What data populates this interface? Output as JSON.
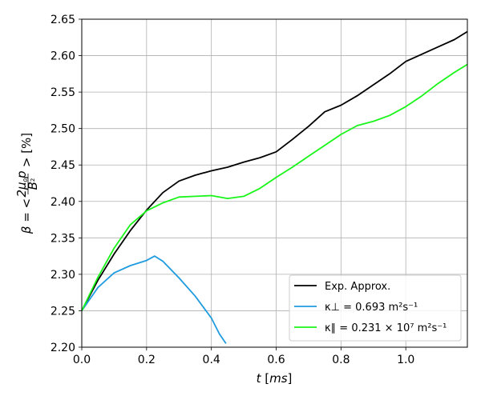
{
  "chart_data": {
    "type": "line",
    "xlabel": "t [ms]",
    "ylabel": "β = < 2μ0p / B² > [%]",
    "xlim": [
      0.0,
      1.19
    ],
    "ylim": [
      2.2,
      2.65
    ],
    "xticks": [
      0.0,
      0.2,
      0.4,
      0.6,
      0.8,
      1.0
    ],
    "xtick_labels": [
      "0.0",
      "0.2",
      "0.4",
      "0.6",
      "0.8",
      "1.0"
    ],
    "yticks": [
      2.2,
      2.25,
      2.3,
      2.35,
      2.4,
      2.45,
      2.5,
      2.55,
      2.6,
      2.65
    ],
    "ytick_labels": [
      "2.20",
      "2.25",
      "2.30",
      "2.35",
      "2.40",
      "2.45",
      "2.50",
      "2.55",
      "2.60",
      "2.65"
    ],
    "grid": true,
    "legend_position": "lower-right",
    "series": [
      {
        "name": "Exp. Approx.",
        "color": "#000000",
        "x": [
          0.0,
          0.05,
          0.1,
          0.15,
          0.2,
          0.25,
          0.3,
          0.35,
          0.4,
          0.45,
          0.5,
          0.55,
          0.6,
          0.65,
          0.7,
          0.75,
          0.8,
          0.85,
          0.9,
          0.95,
          1.0,
          1.05,
          1.1,
          1.15,
          1.19
        ],
        "y": [
          2.25,
          2.292,
          2.328,
          2.36,
          2.388,
          2.412,
          2.428,
          2.436,
          2.442,
          2.447,
          2.454,
          2.46,
          2.468,
          2.485,
          2.503,
          2.523,
          2.532,
          2.545,
          2.56,
          2.575,
          2.592,
          2.602,
          2.612,
          2.622,
          2.633
        ]
      },
      {
        "name": "κ⊥ = 0.693 m²s⁻¹",
        "color": "#1f9be0",
        "x": [
          0.0,
          0.05,
          0.1,
          0.15,
          0.2,
          0.225,
          0.25,
          0.3,
          0.35,
          0.4,
          0.425,
          0.445
        ],
        "y": [
          2.25,
          2.282,
          2.302,
          2.312,
          2.319,
          2.325,
          2.318,
          2.295,
          2.27,
          2.24,
          2.218,
          2.205
        ]
      },
      {
        "name": "κ∥ = 0.231 × 10⁷ m²s⁻¹",
        "color": "#19f519",
        "x": [
          0.0,
          0.05,
          0.1,
          0.15,
          0.2,
          0.25,
          0.3,
          0.35,
          0.4,
          0.45,
          0.5,
          0.55,
          0.6,
          0.65,
          0.7,
          0.75,
          0.8,
          0.85,
          0.9,
          0.95,
          1.0,
          1.05,
          1.1,
          1.15,
          1.19
        ],
        "y": [
          2.25,
          2.296,
          2.336,
          2.368,
          2.387,
          2.398,
          2.406,
          2.407,
          2.408,
          2.404,
          2.407,
          2.418,
          2.433,
          2.447,
          2.462,
          2.477,
          2.492,
          2.504,
          2.51,
          2.518,
          2.53,
          2.545,
          2.562,
          2.577,
          2.588
        ]
      }
    ]
  }
}
